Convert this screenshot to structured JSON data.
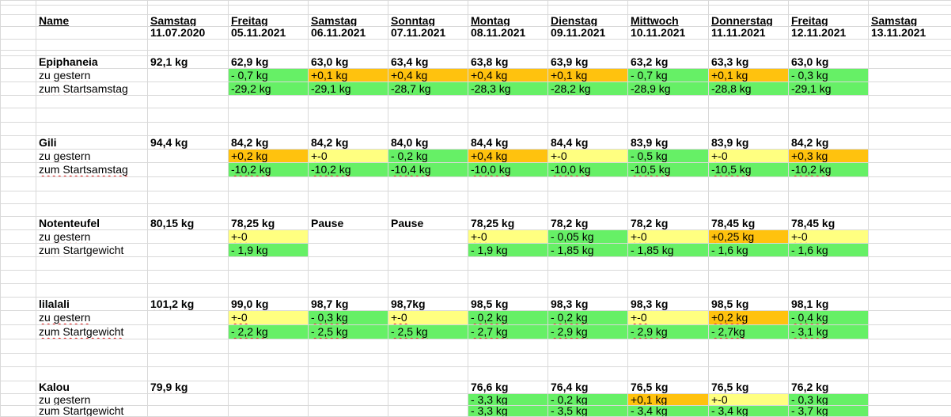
{
  "colors": {
    "green": "#66f066",
    "yellow": "#ffff80",
    "orange": "#ffc20e",
    "gridline": "#d9d9d9"
  },
  "header": {
    "name": "Name",
    "days": [
      {
        "day": "Samstag",
        "date": "11.07.2020"
      },
      {
        "day": "Freitag",
        "date": "05.11.2021"
      },
      {
        "day": "Samstag",
        "date": "06.11.2021"
      },
      {
        "day": "Sonntag",
        "date": "07.11.2021"
      },
      {
        "day": "Montag",
        "date": "08.11.2021"
      },
      {
        "day": "Dienstag",
        "date": "09.11.2021"
      },
      {
        "day": "Mittwoch",
        "date": "10.11.2021"
      },
      {
        "day": "Donnerstag",
        "date": "11.11.2021"
      },
      {
        "day": "Freitag",
        "date": "12.11.2021"
      },
      {
        "day": "Samstag",
        "date": "13.11.2021"
      }
    ]
  },
  "people": [
    {
      "name": "Epiphaneia",
      "weights": [
        "92,1 kg",
        "62,9 kg",
        "63,0 kg",
        "63,4 kg",
        "63,8 kg",
        "63,9 kg",
        "63,2 kg",
        "63,3 kg",
        "63,0 kg",
        ""
      ],
      "diff_label": "zu gestern",
      "diffs": [
        {
          "v": "",
          "c": ""
        },
        {
          "v": "- 0,7 kg",
          "c": "green"
        },
        {
          "v": "+0,1 kg",
          "c": "orange"
        },
        {
          "v": "+0,4 kg",
          "c": "orange"
        },
        {
          "v": "+0,4 kg",
          "c": "orange"
        },
        {
          "v": "+0,1 kg",
          "c": "orange"
        },
        {
          "v": "- 0,7 kg",
          "c": "green"
        },
        {
          "v": "+0,1 kg",
          "c": "orange"
        },
        {
          "v": "- 0,3 kg",
          "c": "green"
        },
        {
          "v": "",
          "c": ""
        }
      ],
      "total_label": "zum Startsamstag",
      "totals": [
        {
          "v": "",
          "c": ""
        },
        {
          "v": "-29,2 kg",
          "c": "green"
        },
        {
          "v": "-29,1 kg",
          "c": "green"
        },
        {
          "v": "-28,7 kg",
          "c": "green"
        },
        {
          "v": "-28,3 kg",
          "c": "green"
        },
        {
          "v": "-28,2 kg",
          "c": "green"
        },
        {
          "v": "-28,9 kg",
          "c": "green"
        },
        {
          "v": "-28,8 kg",
          "c": "green"
        },
        {
          "v": "-29,1 kg",
          "c": "green"
        },
        {
          "v": "",
          "c": ""
        }
      ]
    },
    {
      "name": "Gili",
      "weights": [
        "94,4 kg",
        "84,2 kg",
        "84,2 kg",
        "84,0 kg",
        "84,4 kg",
        "84,4 kg",
        "83,9 kg",
        "83,9 kg",
        "84,2 kg",
        ""
      ],
      "diff_label": "zu gestern",
      "diffs": [
        {
          "v": "",
          "c": ""
        },
        {
          "v": "+0,2 kg",
          "c": "orange"
        },
        {
          "v": "+-0",
          "c": "yellow"
        },
        {
          "v": "- 0,2 kg",
          "c": "green"
        },
        {
          "v": "+0,4 kg",
          "c": "orange"
        },
        {
          "v": "+-0",
          "c": "yellow"
        },
        {
          "v": "- 0,5 kg",
          "c": "green"
        },
        {
          "v": "+-0",
          "c": "yellow"
        },
        {
          "v": "+0,3 kg",
          "c": "orange"
        },
        {
          "v": "",
          "c": ""
        }
      ],
      "total_label": "zum Startsamstag",
      "totals": [
        {
          "v": "",
          "c": ""
        },
        {
          "v": "-10,2 kg",
          "c": "green"
        },
        {
          "v": "-10,2 kg",
          "c": "green"
        },
        {
          "v": "-10,4 kg",
          "c": "green"
        },
        {
          "v": "-10,0 kg",
          "c": "green"
        },
        {
          "v": "-10,0 kg",
          "c": "green"
        },
        {
          "v": "-10,5 kg",
          "c": "green"
        },
        {
          "v": "-10,5 kg",
          "c": "green"
        },
        {
          "v": "-10,2 kg",
          "c": "green"
        },
        {
          "v": "",
          "c": ""
        }
      ]
    },
    {
      "name": "Notenteufel",
      "weights": [
        "80,15 kg",
        "78,25 kg",
        "Pause",
        "Pause",
        "78,25 kg",
        "78,2 kg",
        "78,2 kg",
        "78,45 kg",
        "78,45 kg",
        ""
      ],
      "diff_label": "zu gestern",
      "diffs": [
        {
          "v": "",
          "c": ""
        },
        {
          "v": "+-0",
          "c": "yellow"
        },
        {
          "v": "",
          "c": ""
        },
        {
          "v": "",
          "c": ""
        },
        {
          "v": "+-0",
          "c": "yellow"
        },
        {
          "v": "- 0,05 kg",
          "c": "green"
        },
        {
          "v": "+-0",
          "c": "yellow"
        },
        {
          "v": "+0,25 kg",
          "c": "orange"
        },
        {
          "v": "+-0",
          "c": "yellow"
        },
        {
          "v": "",
          "c": ""
        }
      ],
      "total_label": "zum Startgewicht",
      "totals": [
        {
          "v": "",
          "c": ""
        },
        {
          "v": "- 1,9 kg",
          "c": "green"
        },
        {
          "v": "",
          "c": ""
        },
        {
          "v": "",
          "c": ""
        },
        {
          "v": "- 1,9 kg",
          "c": "green"
        },
        {
          "v": "- 1,85 kg",
          "c": "green"
        },
        {
          "v": "- 1,85 kg",
          "c": "green"
        },
        {
          "v": "- 1,6 kg",
          "c": "green"
        },
        {
          "v": "- 1,6 kg",
          "c": "green"
        },
        {
          "v": "",
          "c": ""
        }
      ]
    },
    {
      "name": "lilalali",
      "weights": [
        "101,2 kg",
        "99,0 kg",
        "98,7 kg",
        "98,7kg",
        "98,5 kg",
        "98,3 kg",
        "98,3 kg",
        "98,5 kg",
        "98,1 kg",
        ""
      ],
      "diff_label": "zu gestern",
      "diffs": [
        {
          "v": "",
          "c": ""
        },
        {
          "v": "+-0",
          "c": "yellow"
        },
        {
          "v": "- 0,3 kg",
          "c": "green"
        },
        {
          "v": "+-0",
          "c": "yellow"
        },
        {
          "v": "- 0,2 kg",
          "c": "green"
        },
        {
          "v": "- 0,2 kg",
          "c": "green"
        },
        {
          "v": "+-0",
          "c": "yellow"
        },
        {
          "v": "+0,2 kg",
          "c": "orange"
        },
        {
          "v": "- 0,4 kg",
          "c": "green"
        },
        {
          "v": "",
          "c": ""
        }
      ],
      "total_label": "zum Startgewicht",
      "totals": [
        {
          "v": "",
          "c": ""
        },
        {
          "v": "- 2,2 kg",
          "c": "green"
        },
        {
          "v": "- 2,5 kg",
          "c": "green"
        },
        {
          "v": "- 2,5 kg",
          "c": "green"
        },
        {
          "v": "- 2,7 kg",
          "c": "green"
        },
        {
          "v": "- 2,9 kg",
          "c": "green"
        },
        {
          "v": "- 2,9 kg",
          "c": "green"
        },
        {
          "v": "- 2,7kg",
          "c": "green"
        },
        {
          "v": "- 3,1 kg",
          "c": "green"
        },
        {
          "v": "",
          "c": ""
        }
      ]
    },
    {
      "name": "Kalou",
      "weights": [
        "79,9 kg",
        "",
        "",
        "",
        "76,6 kg",
        "76,4 kg",
        "76,5 kg",
        "76,5 kg",
        "76,2 kg",
        ""
      ],
      "diff_label": "zu gestern",
      "diffs": [
        {
          "v": "",
          "c": ""
        },
        {
          "v": "",
          "c": ""
        },
        {
          "v": "",
          "c": ""
        },
        {
          "v": "",
          "c": ""
        },
        {
          "v": "- 3,3 kg",
          "c": "green"
        },
        {
          "v": "- 0,2 kg",
          "c": "green"
        },
        {
          "v": "+0,1 kg",
          "c": "orange"
        },
        {
          "v": "+-0",
          "c": "yellow"
        },
        {
          "v": "- 0,3 kg",
          "c": "green"
        },
        {
          "v": "",
          "c": ""
        }
      ],
      "total_label": "zum Startgewicht",
      "totals": [
        {
          "v": "",
          "c": ""
        },
        {
          "v": "",
          "c": ""
        },
        {
          "v": "",
          "c": ""
        },
        {
          "v": "",
          "c": ""
        },
        {
          "v": "- 3,3 kg",
          "c": "green"
        },
        {
          "v": "- 3,5 kg",
          "c": "green"
        },
        {
          "v": "- 3,4 kg",
          "c": "green"
        },
        {
          "v": "- 3,4 kg",
          "c": "green"
        },
        {
          "v": "- 3,7 kg",
          "c": "green"
        },
        {
          "v": "",
          "c": ""
        }
      ]
    }
  ]
}
